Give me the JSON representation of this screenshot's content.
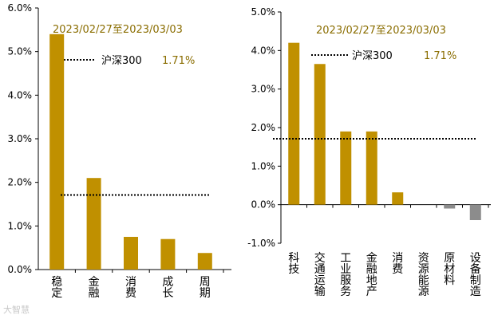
{
  "chart_data": [
    {
      "type": "bar",
      "categories": [
        "稳定",
        "金融",
        "消费",
        "成长",
        "周期"
      ],
      "values": [
        5.4,
        2.1,
        0.75,
        0.7,
        0.38
      ],
      "ylim": [
        0,
        6.0
      ],
      "yticks": [
        "0.0%",
        "1.0%",
        "2.0%",
        "3.0%",
        "4.0%",
        "5.0%",
        "6.0%"
      ],
      "date_range": "2023/02/27至2023/03/03",
      "benchmark": {
        "name": "沪深300",
        "value": 1.71,
        "label": "1.71%"
      },
      "bar_color": "#c09000"
    },
    {
      "type": "bar",
      "categories": [
        "科技",
        "交通运输",
        "工业服务",
        "金融地产",
        "消费",
        "资源能源",
        "原材料",
        "设备制造"
      ],
      "values": [
        4.2,
        3.65,
        1.9,
        1.9,
        0.32,
        0.0,
        -0.1,
        -0.4
      ],
      "ylim": [
        -1.0,
        5.0
      ],
      "yticks": [
        "-1.0%",
        "0.0%",
        "1.0%",
        "2.0%",
        "3.0%",
        "4.0%",
        "5.0%"
      ],
      "date_range": "2023/02/27至2023/03/03",
      "benchmark": {
        "name": "沪深300",
        "value": 1.71,
        "label": "1.71%"
      },
      "bar_color": "#c09000",
      "negative_color": "#8c8c8c"
    }
  ],
  "watermark": "大智慧"
}
